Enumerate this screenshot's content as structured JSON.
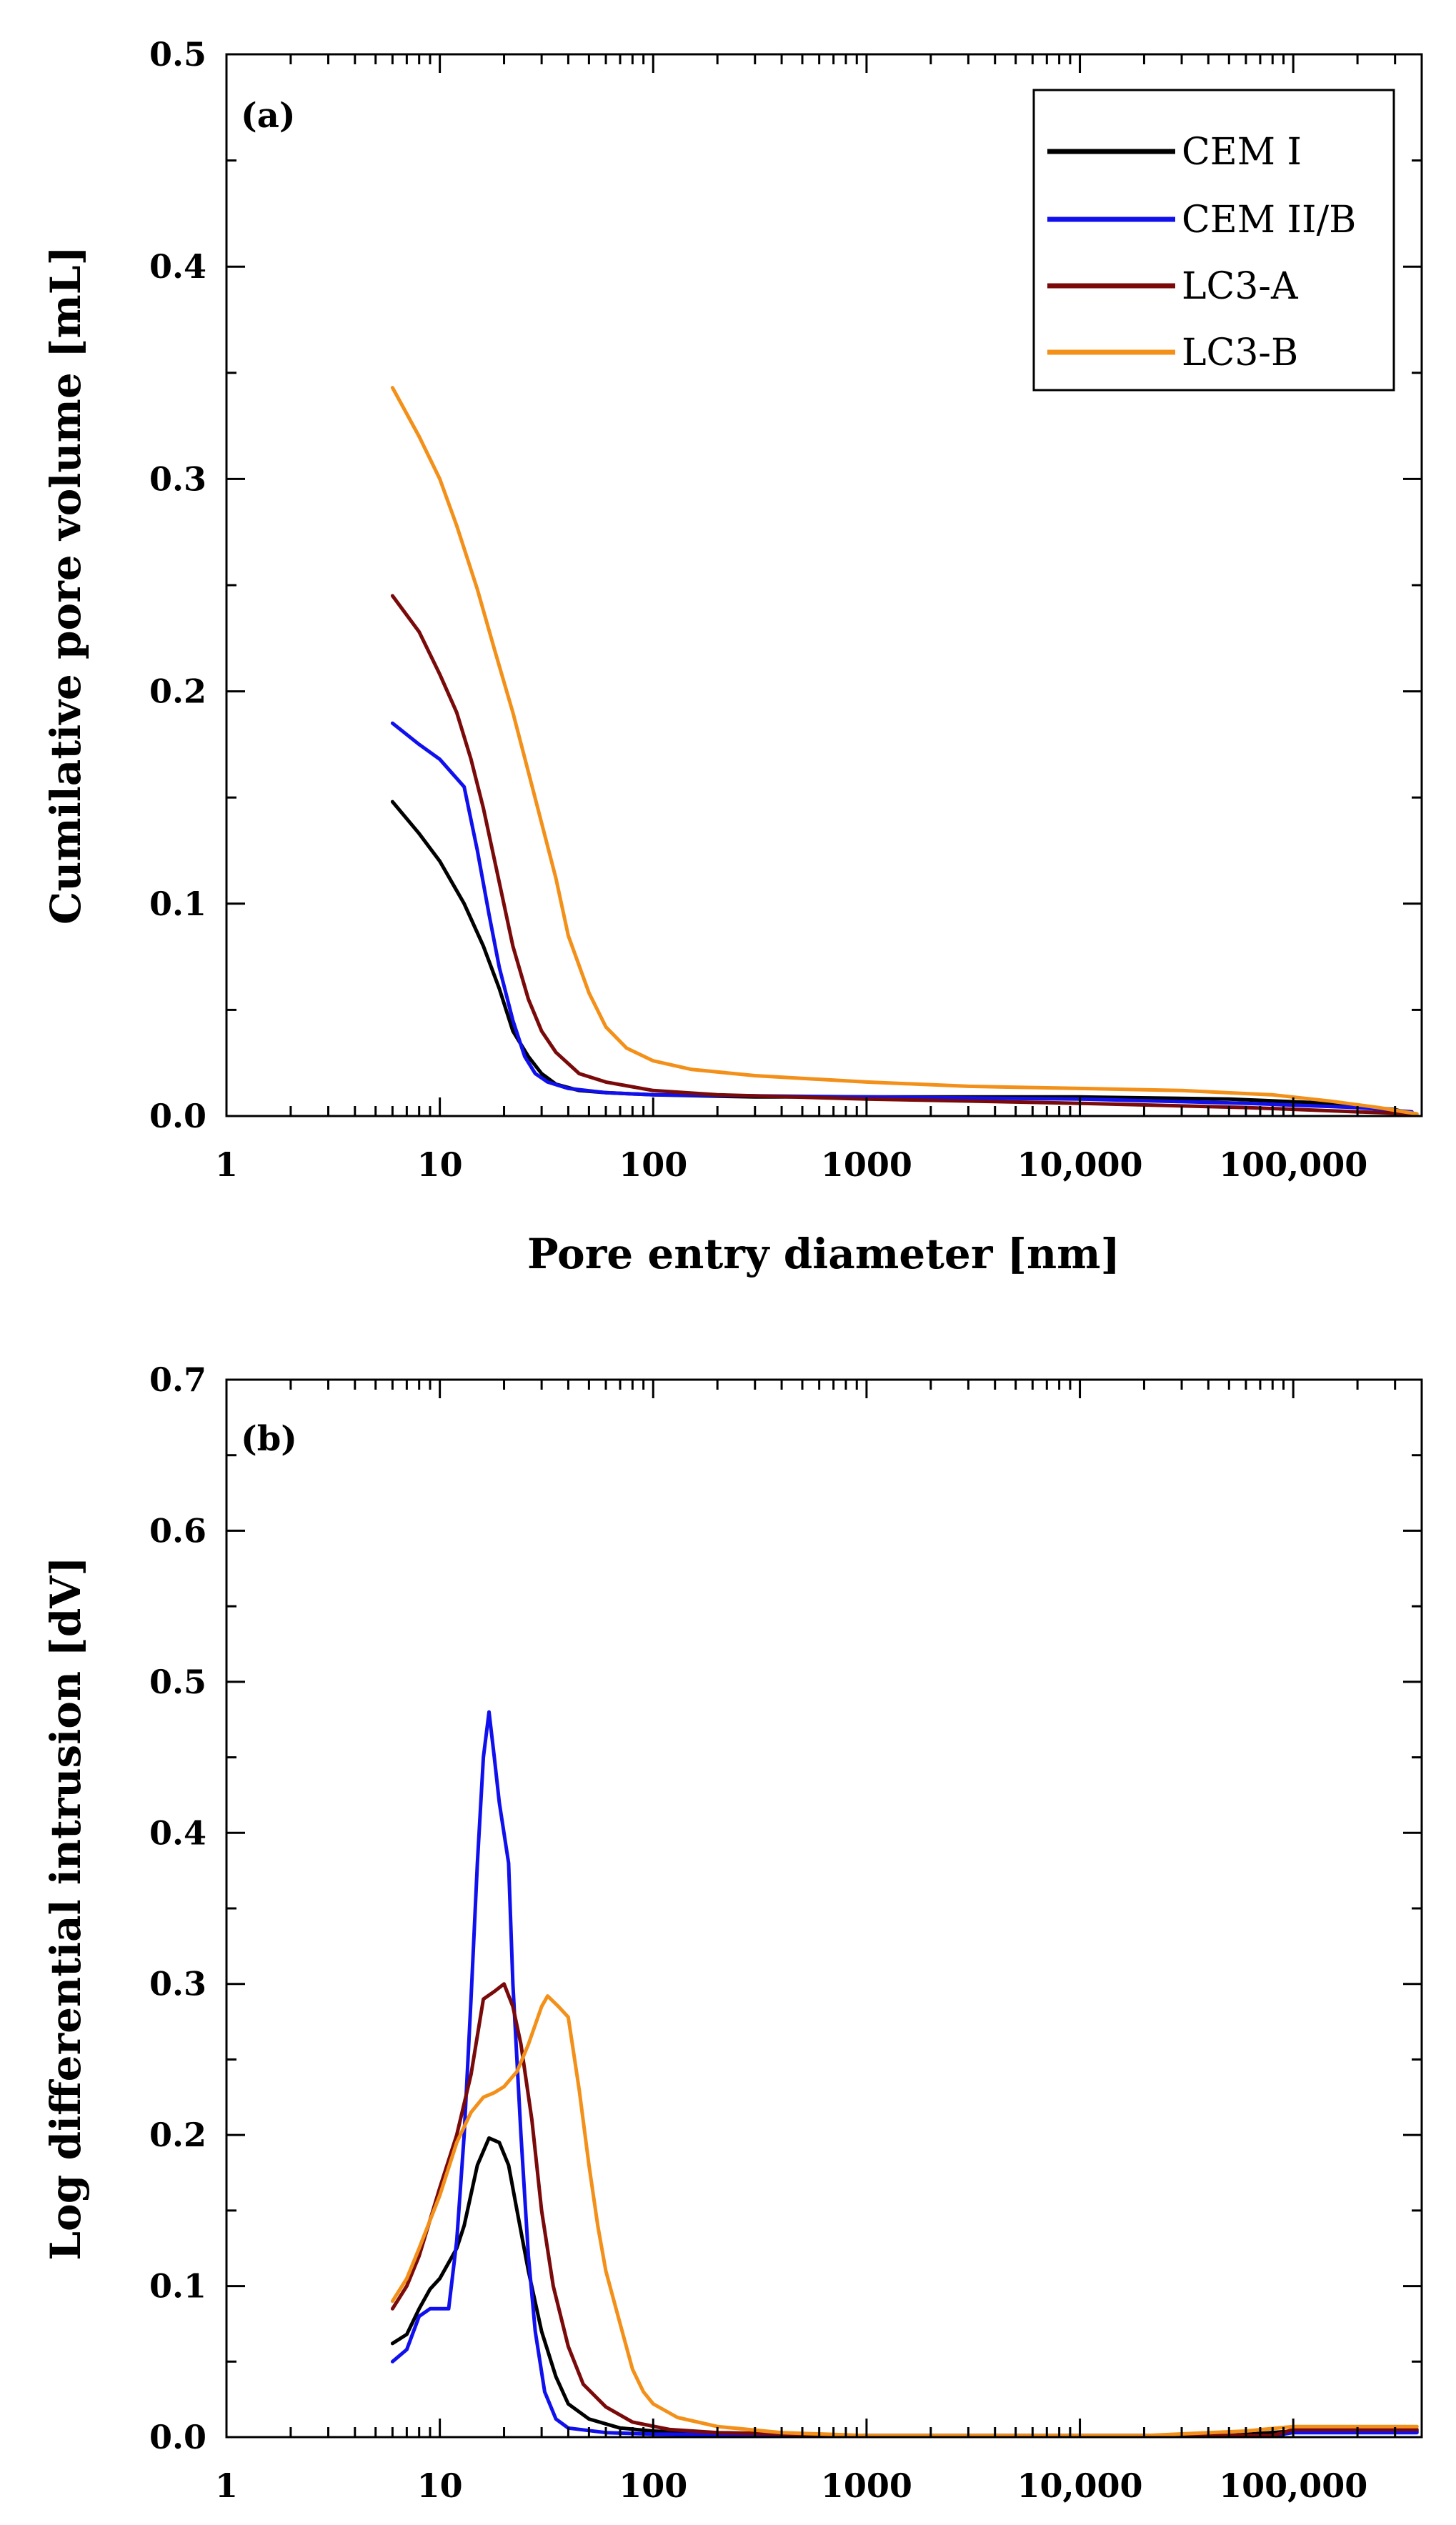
{
  "chart_data": [
    {
      "id": "a",
      "type": "line",
      "panel_label": "(a)",
      "xlabel": "Pore entry diameter [nm]",
      "ylabel": "Cumilative pore volume [mL]",
      "xscale": "log",
      "xlim": [
        1,
        400000
      ],
      "ylim": [
        0,
        0.5
      ],
      "x_ticks": [
        1,
        10,
        100,
        1000,
        10000,
        100000
      ],
      "x_tick_labels": [
        "1",
        "10",
        "100",
        "1000",
        "10,000",
        "100,000"
      ],
      "y_ticks": [
        0,
        0.1,
        0.2,
        0.3,
        0.4,
        0.5
      ],
      "y_tick_labels": [
        "0.0",
        "0.1",
        "0.2",
        "0.3",
        "0.4",
        "0.5"
      ],
      "legend": {
        "position": "top-right",
        "entries": [
          "CEM I",
          "CEM II/B",
          "LC3-A",
          "LC3-B"
        ]
      },
      "series": [
        {
          "name": "CEM I",
          "color": "#000000",
          "points": [
            [
              6,
              0.148
            ],
            [
              8,
              0.133
            ],
            [
              10,
              0.12
            ],
            [
              13,
              0.1
            ],
            [
              16,
              0.08
            ],
            [
              19,
              0.06
            ],
            [
              22,
              0.04
            ],
            [
              26,
              0.028
            ],
            [
              30,
              0.02
            ],
            [
              35,
              0.015
            ],
            [
              45,
              0.012
            ],
            [
              60,
              0.011
            ],
            [
              100,
              0.01
            ],
            [
              300,
              0.009
            ],
            [
              1000,
              0.009
            ],
            [
              10000,
              0.009
            ],
            [
              50000,
              0.008
            ],
            [
              150000,
              0.006
            ],
            [
              300000,
              0.003
            ],
            [
              360000,
              0.001
            ]
          ]
        },
        {
          "name": "CEM II/B",
          "color": "#1010ee",
          "points": [
            [
              6,
              0.185
            ],
            [
              8,
              0.175
            ],
            [
              10,
              0.168
            ],
            [
              13,
              0.155
            ],
            [
              15,
              0.125
            ],
            [
              17,
              0.095
            ],
            [
              19,
              0.07
            ],
            [
              22,
              0.045
            ],
            [
              25,
              0.028
            ],
            [
              28,
              0.02
            ],
            [
              32,
              0.016
            ],
            [
              40,
              0.013
            ],
            [
              60,
              0.011
            ],
            [
              100,
              0.01
            ],
            [
              1000,
              0.009
            ],
            [
              10000,
              0.008
            ],
            [
              60000,
              0.006
            ],
            [
              200000,
              0.004
            ],
            [
              360000,
              0.002
            ]
          ]
        },
        {
          "name": "LC3-A",
          "color": "#7a0a0a",
          "points": [
            [
              6,
              0.245
            ],
            [
              8,
              0.228
            ],
            [
              10,
              0.208
            ],
            [
              12,
              0.19
            ],
            [
              14,
              0.168
            ],
            [
              16,
              0.145
            ],
            [
              19,
              0.11
            ],
            [
              22,
              0.08
            ],
            [
              26,
              0.055
            ],
            [
              30,
              0.04
            ],
            [
              35,
              0.03
            ],
            [
              45,
              0.02
            ],
            [
              60,
              0.016
            ],
            [
              100,
              0.012
            ],
            [
              200,
              0.01
            ],
            [
              1000,
              0.008
            ],
            [
              10000,
              0.006
            ],
            [
              60000,
              0.004
            ],
            [
              200000,
              0.002
            ],
            [
              360000,
              0.001
            ]
          ]
        },
        {
          "name": "LC3-B",
          "color": "#f39019",
          "points": [
            [
              6,
              0.343
            ],
            [
              8,
              0.32
            ],
            [
              10,
              0.3
            ],
            [
              12,
              0.278
            ],
            [
              15,
              0.248
            ],
            [
              18,
              0.22
            ],
            [
              22,
              0.19
            ],
            [
              26,
              0.162
            ],
            [
              30,
              0.138
            ],
            [
              35,
              0.112
            ],
            [
              40,
              0.085
            ],
            [
              50,
              0.058
            ],
            [
              60,
              0.042
            ],
            [
              75,
              0.032
            ],
            [
              100,
              0.026
            ],
            [
              150,
              0.022
            ],
            [
              300,
              0.019
            ],
            [
              1000,
              0.016
            ],
            [
              3000,
              0.014
            ],
            [
              10000,
              0.013
            ],
            [
              30000,
              0.012
            ],
            [
              80000,
              0.01
            ],
            [
              150000,
              0.007
            ],
            [
              250000,
              0.004
            ],
            [
              380000,
              0.001
            ]
          ]
        }
      ]
    },
    {
      "id": "b",
      "type": "line",
      "panel_label": "(b)",
      "xlabel": "",
      "ylabel": "Log differential intrusion [dV]",
      "xscale": "log",
      "xlim": [
        1,
        400000
      ],
      "ylim": [
        0,
        0.7
      ],
      "x_ticks": [
        1,
        10,
        100,
        1000,
        10000,
        100000
      ],
      "x_tick_labels": [
        "1",
        "10",
        "100",
        "1000",
        "10,000",
        "100,000"
      ],
      "y_ticks": [
        0,
        0.1,
        0.2,
        0.3,
        0.4,
        0.5,
        0.6,
        0.7
      ],
      "y_tick_labels": [
        "0.0",
        "0.1",
        "0.2",
        "0.3",
        "0.4",
        "0.5",
        "0.6",
        "0.7"
      ],
      "series": [
        {
          "name": "CEM I",
          "color": "#000000",
          "points": [
            [
              6,
              0.062
            ],
            [
              7,
              0.068
            ],
            [
              8,
              0.085
            ],
            [
              9,
              0.098
            ],
            [
              10,
              0.105
            ],
            [
              12,
              0.125
            ],
            [
              13,
              0.14
            ],
            [
              15,
              0.18
            ],
            [
              17,
              0.198
            ],
            [
              19,
              0.195
            ],
            [
              21,
              0.18
            ],
            [
              23,
              0.15
            ],
            [
              26,
              0.11
            ],
            [
              30,
              0.07
            ],
            [
              35,
              0.04
            ],
            [
              40,
              0.022
            ],
            [
              50,
              0.012
            ],
            [
              70,
              0.006
            ],
            [
              100,
              0.004
            ],
            [
              200,
              0.002
            ],
            [
              1000,
              0.001
            ],
            [
              50000,
              0.001
            ],
            [
              100000,
              0.004
            ],
            [
              380000,
              0.004
            ]
          ]
        },
        {
          "name": "CEM II/B",
          "color": "#1010ee",
          "points": [
            [
              6,
              0.05
            ],
            [
              7,
              0.058
            ],
            [
              8,
              0.08
            ],
            [
              9,
              0.085
            ],
            [
              11,
              0.085
            ],
            [
              12,
              0.13
            ],
            [
              13,
              0.2
            ],
            [
              14,
              0.29
            ],
            [
              15,
              0.38
            ],
            [
              16,
              0.45
            ],
            [
              17,
              0.48
            ],
            [
              18,
              0.45
            ],
            [
              19,
              0.42
            ],
            [
              21,
              0.38
            ],
            [
              22,
              0.3
            ],
            [
              24,
              0.2
            ],
            [
              26,
              0.12
            ],
            [
              28,
              0.07
            ],
            [
              31,
              0.03
            ],
            [
              35,
              0.012
            ],
            [
              40,
              0.006
            ],
            [
              60,
              0.003
            ],
            [
              100,
              0.002
            ],
            [
              1000,
              0.001
            ],
            [
              80000,
              0.001
            ],
            [
              100000,
              0.003
            ],
            [
              380000,
              0.003
            ]
          ]
        },
        {
          "name": "LC3-A",
          "color": "#7a0a0a",
          "points": [
            [
              6,
              0.085
            ],
            [
              7,
              0.1
            ],
            [
              8,
              0.12
            ],
            [
              10,
              0.165
            ],
            [
              12,
              0.2
            ],
            [
              14,
              0.24
            ],
            [
              16,
              0.29
            ],
            [
              18,
              0.295
            ],
            [
              20,
              0.3
            ],
            [
              22,
              0.285
            ],
            [
              24,
              0.26
            ],
            [
              27,
              0.21
            ],
            [
              30,
              0.15
            ],
            [
              34,
              0.1
            ],
            [
              40,
              0.06
            ],
            [
              47,
              0.035
            ],
            [
              60,
              0.02
            ],
            [
              80,
              0.01
            ],
            [
              120,
              0.005
            ],
            [
              200,
              0.003
            ],
            [
              1000,
              0.001
            ],
            [
              80000,
              0.001
            ],
            [
              100000,
              0.005
            ],
            [
              380000,
              0.005
            ]
          ]
        },
        {
          "name": "LC3-B",
          "color": "#f39019",
          "points": [
            [
              6,
              0.09
            ],
            [
              7,
              0.105
            ],
            [
              8,
              0.125
            ],
            [
              10,
              0.16
            ],
            [
              12,
              0.195
            ],
            [
              14,
              0.215
            ],
            [
              16,
              0.225
            ],
            [
              18,
              0.228
            ],
            [
              20,
              0.232
            ],
            [
              23,
              0.242
            ],
            [
              26,
              0.26
            ],
            [
              30,
              0.285
            ],
            [
              32,
              0.292
            ],
            [
              36,
              0.285
            ],
            [
              40,
              0.278
            ],
            [
              45,
              0.23
            ],
            [
              50,
              0.18
            ],
            [
              55,
              0.14
            ],
            [
              60,
              0.11
            ],
            [
              70,
              0.075
            ],
            [
              80,
              0.045
            ],
            [
              90,
              0.03
            ],
            [
              100,
              0.022
            ],
            [
              130,
              0.013
            ],
            [
              200,
              0.007
            ],
            [
              400,
              0.003
            ],
            [
              1000,
              0.001
            ],
            [
              20000,
              0.001
            ],
            [
              60000,
              0.004
            ],
            [
              100000,
              0.007
            ],
            [
              380000,
              0.007
            ]
          ]
        }
      ]
    }
  ]
}
